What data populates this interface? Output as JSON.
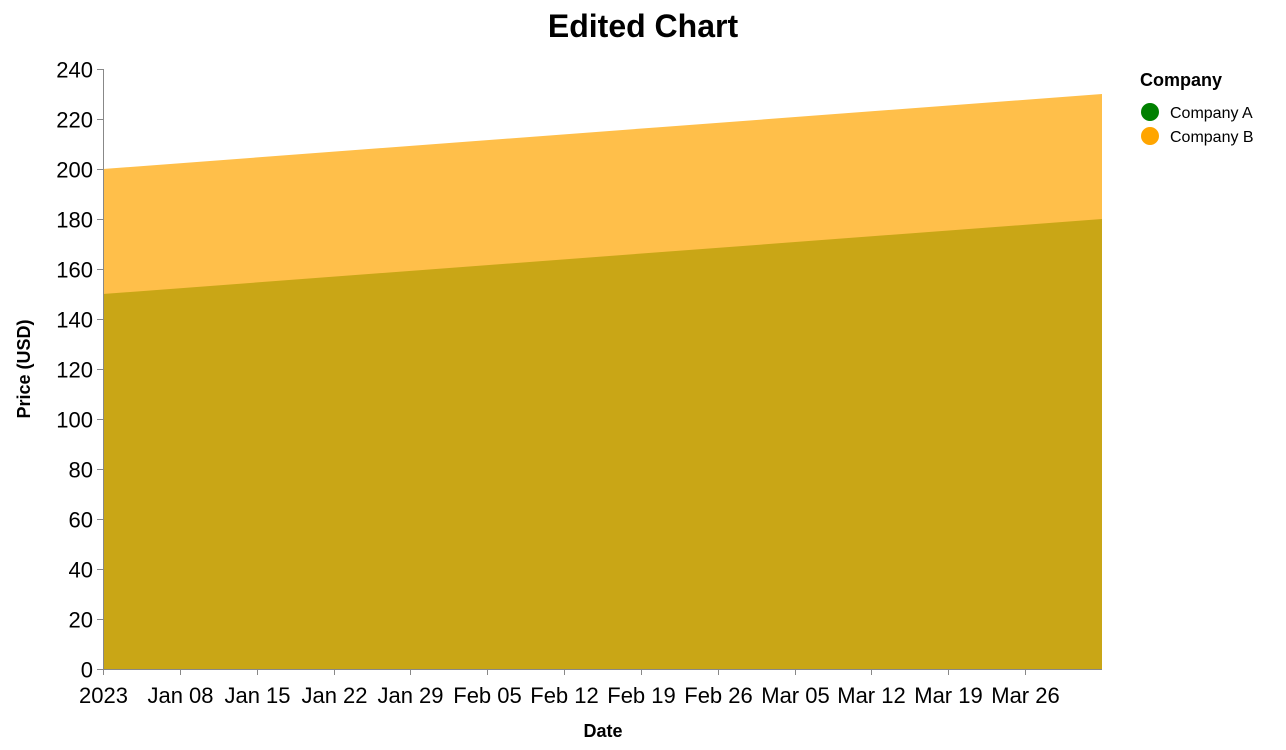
{
  "chart_data": {
    "type": "area",
    "title": "Edited Chart",
    "xlabel": "Date",
    "ylabel": "Price (USD)",
    "x": [
      "2023-01-01",
      "2023-04-02"
    ],
    "series": [
      {
        "name": "Company A",
        "values": [
          150,
          180
        ],
        "color": "#008000",
        "fill_color": "#c9a616"
      },
      {
        "name": "Company B",
        "values": [
          200,
          230
        ],
        "color": "#ffa500",
        "fill_color": "#ffbf4a"
      }
    ],
    "ylim": [
      0,
      240
    ],
    "yticks": [
      0,
      20,
      40,
      60,
      80,
      100,
      120,
      140,
      160,
      180,
      200,
      220,
      240
    ],
    "xticks": [
      {
        "date": "2023-01-01",
        "label": "2023"
      },
      {
        "date": "2023-01-08",
        "label": "Jan 08"
      },
      {
        "date": "2023-01-15",
        "label": "Jan 15"
      },
      {
        "date": "2023-01-22",
        "label": "Jan 22"
      },
      {
        "date": "2023-01-29",
        "label": "Jan 29"
      },
      {
        "date": "2023-02-05",
        "label": "Feb 05"
      },
      {
        "date": "2023-02-12",
        "label": "Feb 12"
      },
      {
        "date": "2023-02-19",
        "label": "Feb 19"
      },
      {
        "date": "2023-02-26",
        "label": "Feb 26"
      },
      {
        "date": "2023-03-05",
        "label": "Mar 05"
      },
      {
        "date": "2023-03-12",
        "label": "Mar 12"
      },
      {
        "date": "2023-03-19",
        "label": "Mar 19"
      },
      {
        "date": "2023-03-26",
        "label": "Mar 26"
      }
    ],
    "grid": false,
    "legend": {
      "title": "Company",
      "placement": "right"
    }
  }
}
